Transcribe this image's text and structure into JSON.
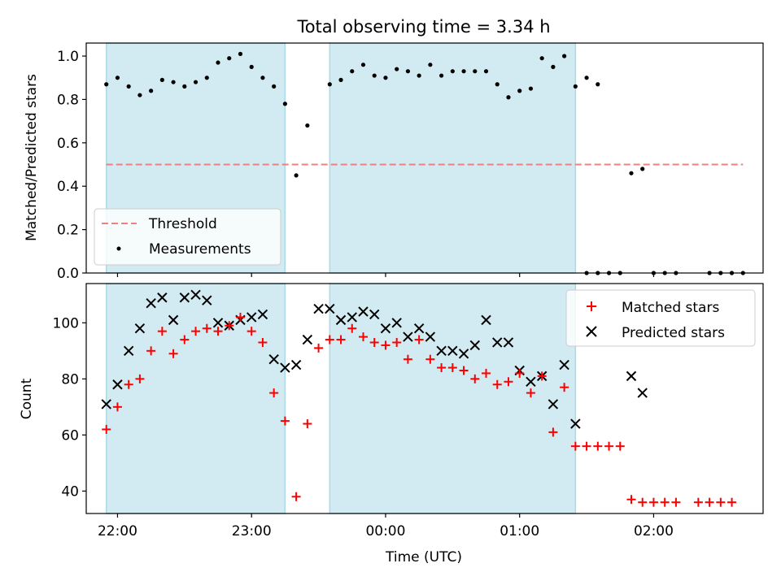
{
  "title": "Total observing time = 3.34 h",
  "chart_data": [
    {
      "type": "scatter",
      "ylabel": "Matched/Predicted stars",
      "ylim": [
        0,
        1.06
      ],
      "yticks": [
        0.0,
        0.2,
        0.4,
        0.6,
        0.8,
        1.0
      ],
      "ytick_labels": [
        "0.0",
        "0.2",
        "0.4",
        "0.6",
        "0.8",
        "1.0"
      ],
      "xlim": [
        "21:46",
        "02:49"
      ],
      "shaded_intervals": [
        [
          "21:55",
          "23:15"
        ],
        [
          "23:35",
          "01:25"
        ]
      ],
      "threshold": {
        "name": "Threshold",
        "value": 0.5,
        "x_range": [
          "21:55",
          "02:40"
        ],
        "color": "#f08080"
      },
      "legend": {
        "position": "lower-left",
        "entries": [
          "Threshold",
          "Measurements"
        ]
      },
      "series": [
        {
          "name": "Measurements",
          "marker": "dot",
          "color": "#000000",
          "points": [
            [
              "21:55",
              0.87
            ],
            [
              "22:00",
              0.9
            ],
            [
              "22:05",
              0.86
            ],
            [
              "22:10",
              0.82
            ],
            [
              "22:15",
              0.84
            ],
            [
              "22:20",
              0.89
            ],
            [
              "22:25",
              0.88
            ],
            [
              "22:30",
              0.86
            ],
            [
              "22:35",
              0.88
            ],
            [
              "22:40",
              0.9
            ],
            [
              "22:45",
              0.97
            ],
            [
              "22:50",
              0.99
            ],
            [
              "22:55",
              1.01
            ],
            [
              "23:00",
              0.95
            ],
            [
              "23:05",
              0.9
            ],
            [
              "23:10",
              0.86
            ],
            [
              "23:15",
              0.78
            ],
            [
              "23:20",
              0.45
            ],
            [
              "23:25",
              0.68
            ],
            [
              "23:35",
              0.87
            ],
            [
              "23:40",
              0.89
            ],
            [
              "23:45",
              0.93
            ],
            [
              "23:50",
              0.96
            ],
            [
              "23:55",
              0.91
            ],
            [
              "00:00",
              0.9
            ],
            [
              "00:05",
              0.94
            ],
            [
              "00:10",
              0.93
            ],
            [
              "00:15",
              0.91
            ],
            [
              "00:20",
              0.96
            ],
            [
              "00:25",
              0.91
            ],
            [
              "00:30",
              0.93
            ],
            [
              "00:35",
              0.93
            ],
            [
              "00:40",
              0.93
            ],
            [
              "00:45",
              0.93
            ],
            [
              "00:50",
              0.87
            ],
            [
              "00:55",
              0.81
            ],
            [
              "01:00",
              0.84
            ],
            [
              "01:05",
              0.85
            ],
            [
              "01:10",
              0.99
            ],
            [
              "01:15",
              0.95
            ],
            [
              "01:20",
              1.0
            ],
            [
              "01:25",
              0.86
            ],
            [
              "01:30",
              0.9
            ],
            [
              "01:35",
              0.87
            ],
            [
              "01:30",
              0.0
            ],
            [
              "01:35",
              0.0
            ],
            [
              "01:40",
              0.0
            ],
            [
              "01:45",
              0.0
            ],
            [
              "01:50",
              0.46
            ],
            [
              "01:55",
              0.48
            ],
            [
              "02:00",
              0.0
            ],
            [
              "02:05",
              0.0
            ],
            [
              "02:10",
              0.0
            ],
            [
              "02:25",
              0.0
            ],
            [
              "02:30",
              0.0
            ],
            [
              "02:35",
              0.0
            ],
            [
              "02:40",
              0.0
            ]
          ]
        }
      ]
    },
    {
      "type": "scatter",
      "xlabel": "Time (UTC)",
      "ylabel": "Count",
      "ylim": [
        32,
        114
      ],
      "yticks": [
        40,
        60,
        80,
        100
      ],
      "ytick_labels": [
        "40",
        "60",
        "80",
        "100"
      ],
      "xlim": [
        "21:46",
        "02:49"
      ],
      "xticks": [
        "22:00",
        "23:00",
        "00:00",
        "01:00",
        "02:00"
      ],
      "shaded_intervals": [
        [
          "21:55",
          "23:15"
        ],
        [
          "23:35",
          "01:25"
        ]
      ],
      "legend": {
        "position": "upper-right",
        "entries": [
          "Matched stars",
          "Predicted stars"
        ]
      },
      "series": [
        {
          "name": "Matched stars",
          "marker": "plus",
          "color": "#ff0000",
          "points": [
            [
              "21:55",
              62
            ],
            [
              "22:00",
              70
            ],
            [
              "22:05",
              78
            ],
            [
              "22:10",
              80
            ],
            [
              "22:15",
              90
            ],
            [
              "22:20",
              97
            ],
            [
              "22:25",
              89
            ],
            [
              "22:30",
              94
            ],
            [
              "22:35",
              97
            ],
            [
              "22:40",
              98
            ],
            [
              "22:45",
              97
            ],
            [
              "22:50",
              99
            ],
            [
              "22:55",
              102
            ],
            [
              "23:00",
              97
            ],
            [
              "23:05",
              93
            ],
            [
              "23:10",
              75
            ],
            [
              "23:15",
              65
            ],
            [
              "23:20",
              38
            ],
            [
              "23:25",
              64
            ],
            [
              "23:30",
              91
            ],
            [
              "23:35",
              94
            ],
            [
              "23:40",
              94
            ],
            [
              "23:45",
              98
            ],
            [
              "23:50",
              95
            ],
            [
              "23:55",
              93
            ],
            [
              "00:00",
              92
            ],
            [
              "00:05",
              93
            ],
            [
              "00:10",
              87
            ],
            [
              "00:15",
              94
            ],
            [
              "00:20",
              87
            ],
            [
              "00:25",
              84
            ],
            [
              "00:30",
              84
            ],
            [
              "00:35",
              83
            ],
            [
              "00:40",
              80
            ],
            [
              "00:45",
              82
            ],
            [
              "00:50",
              78
            ],
            [
              "00:55",
              79
            ],
            [
              "01:00",
              82
            ],
            [
              "01:05",
              75
            ],
            [
              "01:10",
              81
            ],
            [
              "01:15",
              61
            ],
            [
              "01:20",
              77
            ],
            [
              "01:25",
              56
            ],
            [
              "01:30",
              56
            ],
            [
              "01:35",
              56
            ],
            [
              "01:40",
              56
            ],
            [
              "01:45",
              56
            ],
            [
              "01:50",
              37
            ],
            [
              "01:55",
              36
            ],
            [
              "02:00",
              36
            ],
            [
              "02:05",
              36
            ],
            [
              "02:10",
              36
            ],
            [
              "02:20",
              36
            ],
            [
              "02:25",
              36
            ],
            [
              "02:30",
              36
            ],
            [
              "02:35",
              36
            ]
          ]
        },
        {
          "name": "Predicted stars",
          "marker": "x",
          "color": "#000000",
          "points": [
            [
              "21:55",
              71
            ],
            [
              "22:00",
              78
            ],
            [
              "22:05",
              90
            ],
            [
              "22:10",
              98
            ],
            [
              "22:15",
              107
            ],
            [
              "22:20",
              109
            ],
            [
              "22:25",
              101
            ],
            [
              "22:30",
              109
            ],
            [
              "22:35",
              110
            ],
            [
              "22:40",
              108
            ],
            [
              "22:45",
              100
            ],
            [
              "22:50",
              99
            ],
            [
              "22:55",
              101
            ],
            [
              "23:00",
              102
            ],
            [
              "23:05",
              103
            ],
            [
              "23:10",
              87
            ],
            [
              "23:15",
              84
            ],
            [
              "23:20",
              85
            ],
            [
              "23:25",
              94
            ],
            [
              "23:30",
              105
            ],
            [
              "23:35",
              105
            ],
            [
              "23:40",
              101
            ],
            [
              "23:45",
              102
            ],
            [
              "23:50",
              104
            ],
            [
              "23:55",
              103
            ],
            [
              "00:00",
              98
            ],
            [
              "00:05",
              100
            ],
            [
              "00:10",
              95
            ],
            [
              "00:15",
              98
            ],
            [
              "00:20",
              95
            ],
            [
              "00:25",
              90
            ],
            [
              "00:30",
              90
            ],
            [
              "00:35",
              89
            ],
            [
              "00:40",
              92
            ],
            [
              "00:45",
              101
            ],
            [
              "00:50",
              93
            ],
            [
              "00:55",
              93
            ],
            [
              "01:00",
              83
            ],
            [
              "01:05",
              79
            ],
            [
              "01:10",
              81
            ],
            [
              "01:15",
              71
            ],
            [
              "01:20",
              85
            ],
            [
              "01:25",
              64
            ],
            [
              "01:50",
              81
            ],
            [
              "01:55",
              75
            ]
          ]
        }
      ]
    }
  ],
  "colors": {
    "shade": "#add8e6",
    "threshold": "#f08080",
    "matched": "#ff0000",
    "predicted": "#000000"
  }
}
